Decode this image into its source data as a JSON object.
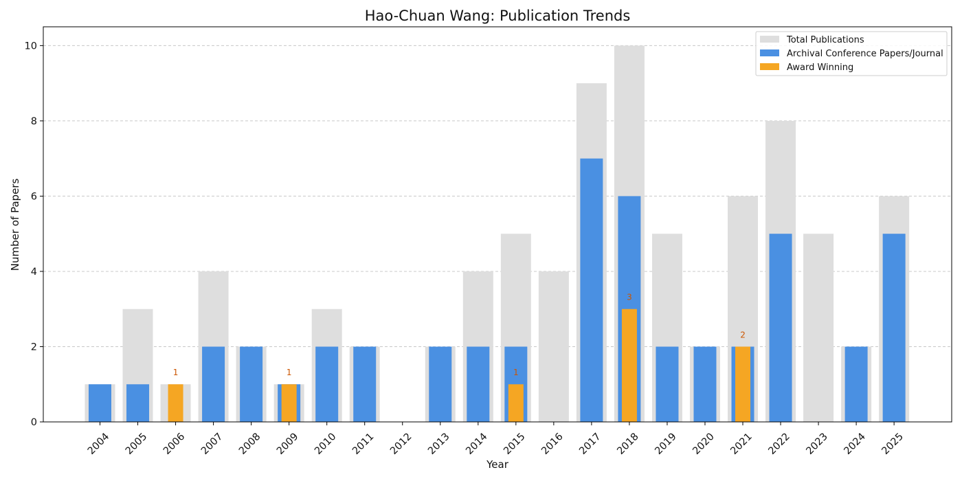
{
  "chart_data": {
    "type": "bar",
    "title": "Hao-Chuan Wang: Publication Trends",
    "xlabel": "Year",
    "ylabel": "Number of Papers",
    "ylim": [
      0,
      10.5
    ],
    "yticks": [
      0,
      2,
      4,
      6,
      8,
      10
    ],
    "grid": "horizontal dashed",
    "legend_position": "top-right",
    "categories": [
      "2004",
      "2005",
      "2006",
      "2007",
      "2008",
      "2009",
      "2010",
      "2011",
      "2012",
      "2013",
      "2014",
      "2015",
      "2016",
      "2017",
      "2018",
      "2019",
      "2020",
      "2021",
      "2022",
      "2023",
      "2024",
      "2025"
    ],
    "series": [
      {
        "name": "Total Publications",
        "color": "#dedede",
        "values": [
          1,
          3,
          1,
          4,
          2,
          1,
          3,
          2,
          0,
          2,
          4,
          5,
          4,
          9,
          10,
          5,
          2,
          6,
          8,
          5,
          2,
          6
        ]
      },
      {
        "name": "Archival Conference Papers/Journal",
        "color": "#4a90e2",
        "values": [
          1,
          1,
          0,
          2,
          2,
          1,
          2,
          2,
          0,
          2,
          2,
          2,
          0,
          7,
          6,
          2,
          2,
          2,
          5,
          0,
          2,
          5
        ]
      },
      {
        "name": "Award Winning",
        "color": "#f5a623",
        "values": [
          0,
          0,
          1,
          0,
          0,
          1,
          0,
          0,
          0,
          0,
          0,
          1,
          0,
          0,
          3,
          0,
          0,
          2,
          0,
          0,
          0,
          0
        ]
      }
    ]
  }
}
